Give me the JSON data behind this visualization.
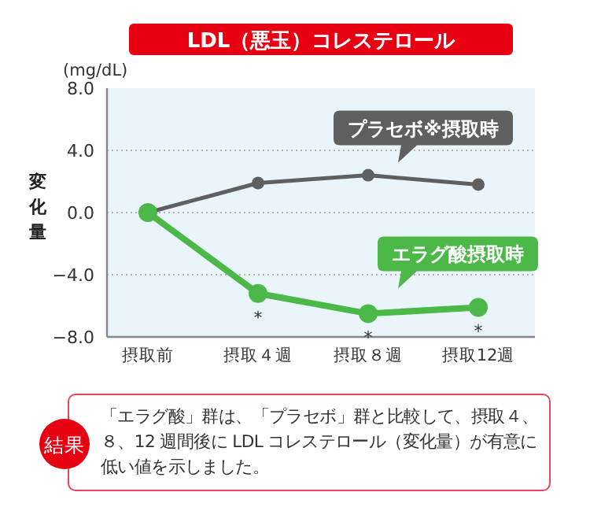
{
  "chart_data": {
    "type": "line",
    "title": "LDL（悪玉）コレステロール",
    "ylabel": "変化量",
    "categories": [
      "摂取前",
      "摂取４週",
      "摂取８週",
      "摂取12週"
    ],
    "series": [
      {
        "name": "プラセボ※摂取時",
        "color": "#5f5f5f",
        "values": [
          0,
          1.9,
          2.4,
          1.8
        ]
      },
      {
        "name": "エラグ酸摂取時",
        "color": "#4cb848",
        "values": [
          0,
          -5.2,
          -6.5,
          -6.1
        ]
      }
    ],
    "ylim": [
      -8,
      8
    ],
    "yticks": [
      {
        "value": 8,
        "label": "8.0"
      },
      {
        "value": 4,
        "label": "4.0"
      },
      {
        "value": 0,
        "label": "0.0"
      },
      {
        "value": -4,
        "label": "−4.0"
      },
      {
        "value": -8,
        "label": "−8.0"
      }
    ],
    "grid": "y",
    "marker": "circle",
    "annotations": [
      "(mg/dL)",
      {
        "text": "*",
        "x": "摂取４週",
        "y": -5.2
      },
      {
        "text": "*",
        "x": "摂取８週",
        "y": -6.5
      },
      {
        "text": "*",
        "x": "摂取12週",
        "y": -6.1
      },
      "結果",
      "「エラグ酸」群は、「プラセボ」群と比較して、摂取４、８、12 週間後に LDL コレステロール（変化量）が有意に低い値を示しました。"
    ]
  }
}
